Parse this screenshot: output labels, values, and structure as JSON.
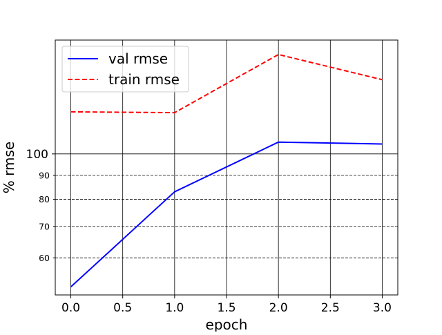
{
  "chart_data": {
    "type": "line",
    "xlabel": "epoch",
    "ylabel": "% rmse",
    "xlim": [
      -0.15,
      3.15
    ],
    "x_ticks": [
      0.0,
      0.5,
      1.0,
      1.5,
      2.0,
      2.5,
      3.0
    ],
    "x_tick_labels": [
      "0.0",
      "0.5",
      "1.0",
      "1.5",
      "2.0",
      "2.5",
      "3.0"
    ],
    "y_scale": "log",
    "ylim": [
      50,
      175
    ],
    "y_major_ticks": [
      100
    ],
    "y_major_tick_labels": [
      "100"
    ],
    "y_minor_ticks": [
      60,
      70,
      80,
      90
    ],
    "y_minor_tick_labels": [
      "60",
      "70",
      "80",
      "90"
    ],
    "grid": {
      "x": "major solid",
      "y_major": "solid",
      "y_minor": "dashed"
    },
    "legend_position": "top-left",
    "series": [
      {
        "name": "val rmse",
        "color": "#0000ff",
        "linestyle": "solid",
        "x": [
          0,
          1,
          2,
          3
        ],
        "y": [
          52,
          83,
          106,
          105
        ]
      },
      {
        "name": "train rmse",
        "color": "#ff0000",
        "linestyle": "dashed",
        "x": [
          0,
          1,
          2,
          3
        ],
        "y": [
          123,
          122.5,
          163,
          144
        ]
      }
    ]
  }
}
